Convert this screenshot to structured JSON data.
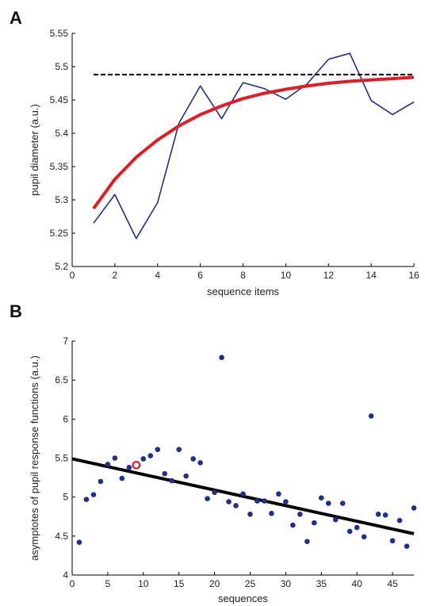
{
  "chart_data": [
    {
      "panel": "A",
      "type": "line",
      "xlabel": "sequence items",
      "ylabel": "pupil diameter (a.u.)",
      "xlim": [
        0,
        16
      ],
      "ylim": [
        5.2,
        5.55
      ],
      "xticks": [
        "0",
        "2",
        "4",
        "6",
        "8",
        "10",
        "12",
        "14",
        "16"
      ],
      "yticks": [
        "5.2",
        "5.25",
        "5.3",
        "5.35",
        "5.4",
        "5.45",
        "5.5",
        "5.55"
      ],
      "grid": false,
      "series": [
        {
          "kind": "observed",
          "color": "#1f2f8c",
          "x": [
            1,
            2,
            3,
            4,
            5,
            6,
            7,
            8,
            9,
            10,
            11,
            12,
            13,
            14,
            15,
            16
          ],
          "y": [
            5.265,
            5.308,
            5.242,
            5.296,
            5.415,
            5.471,
            5.422,
            5.476,
            5.467,
            5.451,
            5.474,
            5.511,
            5.52,
            5.449,
            5.428,
            5.447
          ]
        },
        {
          "kind": "fit",
          "color": "#e41b23",
          "x": [
            1,
            2,
            3,
            4,
            5,
            6,
            7,
            8,
            9,
            10,
            11,
            12,
            13,
            14,
            15,
            16
          ],
          "y": [
            5.287,
            5.331,
            5.364,
            5.39,
            5.411,
            5.428,
            5.441,
            5.452,
            5.46,
            5.466,
            5.471,
            5.475,
            5.478,
            5.48,
            5.482,
            5.484
          ]
        },
        {
          "kind": "asymptote",
          "color": "#000000",
          "dashed": true,
          "y_const": 5.488
        }
      ]
    },
    {
      "panel": "B",
      "type": "scatter",
      "xlabel": "sequences",
      "ylabel": "asymptotes of pupil response functions (a.u.)",
      "xlim": [
        0,
        48
      ],
      "ylim": [
        4,
        7
      ],
      "xticks": [
        "0",
        "5",
        "10",
        "15",
        "20",
        "25",
        "30",
        "35",
        "40",
        "45"
      ],
      "yticks": [
        "4",
        "4.5",
        "5",
        "5.5",
        "6",
        "6.5",
        "7"
      ],
      "grid": false,
      "points_color": "#1f2f8c",
      "highlight_color": "#e41b23",
      "highlight_index": 8,
      "x": [
        1,
        2,
        3,
        4,
        5,
        6,
        7,
        8,
        9,
        10,
        11,
        12,
        13,
        14,
        15,
        16,
        17,
        18,
        19,
        20,
        21,
        22,
        23,
        24,
        25,
        26,
        27,
        28,
        29,
        30,
        31,
        32,
        33,
        34,
        35,
        36,
        37,
        38,
        39,
        40,
        41,
        42,
        43,
        44,
        45,
        46,
        47,
        48
      ],
      "y": [
        4.42,
        4.97,
        5.03,
        5.2,
        5.42,
        5.5,
        5.24,
        5.38,
        5.41,
        5.49,
        5.53,
        5.61,
        5.3,
        5.21,
        5.61,
        5.27,
        5.49,
        5.44,
        4.98,
        5.06,
        6.79,
        4.94,
        4.89,
        5.04,
        4.78,
        4.95,
        4.95,
        4.79,
        5.04,
        4.94,
        4.64,
        4.78,
        4.43,
        4.67,
        4.99,
        4.92,
        4.71,
        4.92,
        4.56,
        4.61,
        4.49,
        6.04,
        4.78,
        4.77,
        4.44,
        4.7,
        4.37,
        4.86
      ],
      "trend": {
        "color": "#000000",
        "x": [
          0,
          48
        ],
        "y": [
          5.49,
          4.53
        ]
      }
    }
  ]
}
